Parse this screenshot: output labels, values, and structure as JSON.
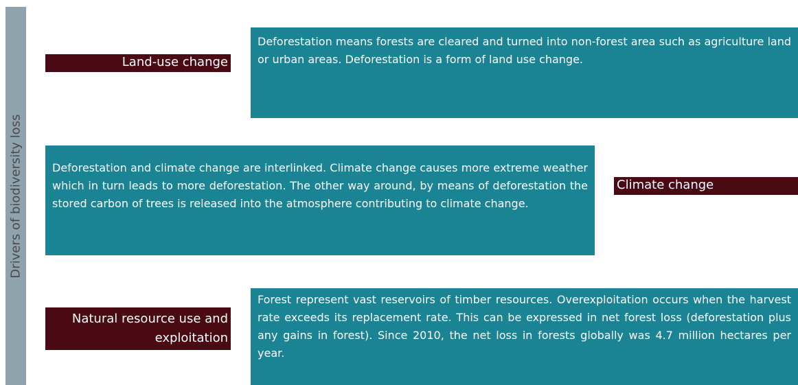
{
  "side_label": "Drivers of biodiversity loss",
  "rows": [
    {
      "label": "Land-use change",
      "text": "Deforestation means forests are cleared and turned into non-forest area such as agriculture land or urban areas. Deforestation is a form of land use change."
    },
    {
      "label": "Climate change",
      "text": "Deforestation and climate change are interlinked. Climate change causes more extreme weather which in turn leads to more deforestation. The other way around, by means of deforestation the stored carbon of trees is released into the atmosphere contributing to climate change."
    },
    {
      "label": "Natural resource use and exploitation",
      "text": "Forest represent vast reservoirs of timber resources. Overexploitation occurs when the harvest rate exceeds its replacement rate. This can be expressed in net forest loss (deforestation plus any gains in forest). Since 2010, the net loss in forests globally was 4.7 million hectares per year."
    }
  ]
}
